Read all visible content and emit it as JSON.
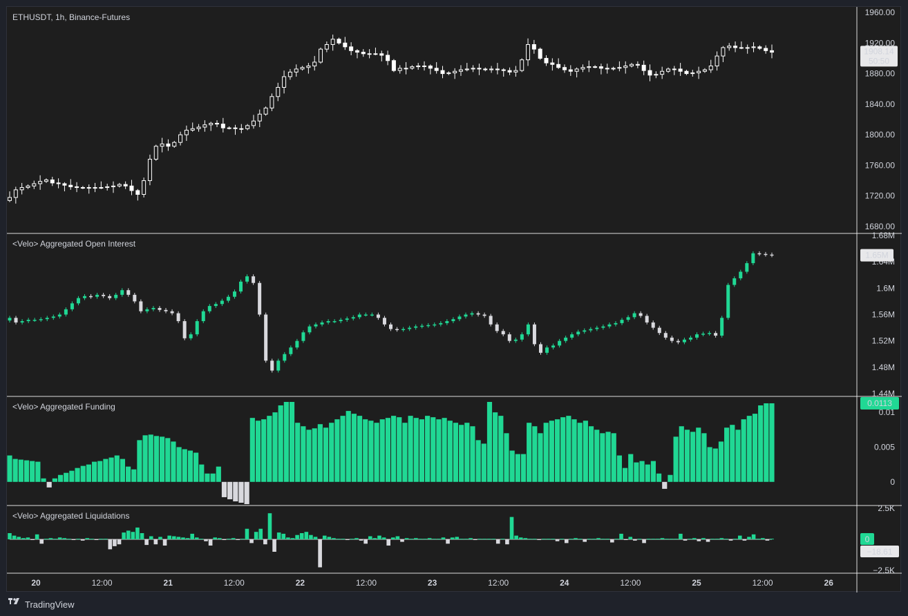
{
  "symbol": "ETHUSDT, 1h, Binance-Futures",
  "footer": {
    "brand": "TradingView",
    "logo_icon": "tradingview-logo-icon"
  },
  "colors": {
    "bull": "#20d894",
    "bear": "#d9d9de",
    "price_candle": "#ffffff",
    "background": "#1e1e1e",
    "grid_line": "#ffffff"
  },
  "time_axis": {
    "labels": [
      "20",
      "12:00",
      "21",
      "12:00",
      "22",
      "12:00",
      "23",
      "12:00",
      "24",
      "12:00",
      "25",
      "12:00",
      "26"
    ],
    "bold_labels": [
      "20",
      "21",
      "22",
      "23",
      "24",
      "25",
      "26"
    ]
  },
  "price_pane": {
    "axis_labels": [
      "1960.00",
      "1920.00",
      "1880.00",
      "1840.00",
      "1800.00",
      "1760.00",
      "1720.00",
      "1680.00"
    ],
    "ylim": [
      1680,
      1960
    ],
    "last_price": "1908.14",
    "countdown": "50:50"
  },
  "oi_pane": {
    "title": "<Velo> Aggregated Open Interest",
    "axis_labels": [
      "1.68M",
      "1.64M",
      "1.6M",
      "1.56M",
      "1.52M",
      "1.48M",
      "1.44M"
    ],
    "ylim": [
      1.44,
      1.68
    ],
    "last_value": "1.65M"
  },
  "funding_pane": {
    "title": "<Velo> Aggregated Funding",
    "axis_labels": [
      "0.01",
      "0.005",
      "0"
    ],
    "ylim": [
      -0.003,
      0.0115
    ],
    "last_value": "0.0113"
  },
  "liq_pane": {
    "title": "<Velo> Aggregated Liquidations",
    "axis_labels": [
      "2.5K",
      "−2.5K"
    ],
    "ylim": [
      -2.5,
      2.5
    ],
    "last_pos": "0",
    "last_neg": "−18.61"
  },
  "chart_data": [
    {
      "type": "candlestick",
      "title": "ETHUSDT, 1h, Binance-Futures",
      "ylim": [
        1680,
        1960
      ],
      "x_labels": [
        "20",
        "12:00",
        "21",
        "12:00",
        "22",
        "12:00",
        "23",
        "12:00",
        "24",
        "12:00",
        "25",
        "12:00",
        "26"
      ],
      "close": [
        1718,
        1728,
        1731,
        1733,
        1736,
        1739,
        1741,
        1737,
        1736,
        1734,
        1732,
        1731,
        1731,
        1731,
        1731,
        1731,
        1732,
        1733,
        1735,
        1733,
        1727,
        1722,
        1740,
        1768,
        1785,
        1788,
        1785,
        1790,
        1800,
        1806,
        1808,
        1810,
        1813,
        1815,
        1814,
        1809,
        1809,
        1808,
        1808,
        1812,
        1818,
        1827,
        1835,
        1850,
        1862,
        1876,
        1882,
        1886,
        1888,
        1890,
        1895,
        1912,
        1918,
        1925,
        1920,
        1915,
        1910,
        1908,
        1906,
        1906,
        1906,
        1904,
        1897,
        1884,
        1887,
        1887,
        1889,
        1890,
        1890,
        1887,
        1884,
        1880,
        1881,
        1883,
        1885,
        1886,
        1887,
        1886,
        1885,
        1886,
        1885,
        1884,
        1882,
        1884,
        1898,
        1918,
        1912,
        1900,
        1894,
        1892,
        1888,
        1885,
        1883,
        1886,
        1888,
        1889,
        1889,
        1887,
        1886,
        1887,
        1888,
        1890,
        1892,
        1891,
        1884,
        1878,
        1879,
        1883,
        1886,
        1886,
        1883,
        1880,
        1881,
        1883,
        1885,
        1890,
        1903,
        1914,
        1916,
        1914,
        1914,
        1914,
        1915,
        1913,
        1910,
        1908
      ]
    },
    {
      "type": "candlestick",
      "title": "<Velo> Aggregated Open Interest",
      "ylim": [
        1.44,
        1.68
      ],
      "close": [
        1.555,
        1.548,
        1.55,
        1.552,
        1.552,
        1.553,
        1.555,
        1.557,
        1.56,
        1.568,
        1.577,
        1.585,
        1.588,
        1.587,
        1.59,
        1.588,
        1.585,
        1.59,
        1.597,
        1.59,
        1.58,
        1.565,
        1.568,
        1.57,
        1.567,
        1.565,
        1.562,
        1.55,
        1.524,
        1.53,
        1.55,
        1.565,
        1.573,
        1.576,
        1.581,
        1.587,
        1.595,
        1.61,
        1.618,
        1.608,
        1.56,
        1.49,
        1.475,
        1.49,
        1.5,
        1.51,
        1.52,
        1.533,
        1.542,
        1.545,
        1.548,
        1.55,
        1.55,
        1.552,
        1.554,
        1.556,
        1.56,
        1.56,
        1.56,
        1.555,
        1.545,
        1.538,
        1.537,
        1.538,
        1.54,
        1.542,
        1.543,
        1.544,
        1.545,
        1.547,
        1.55,
        1.553,
        1.557,
        1.56,
        1.562,
        1.56,
        1.558,
        1.545,
        1.535,
        1.53,
        1.52,
        1.522,
        1.53,
        1.545,
        1.515,
        1.502,
        1.51,
        1.513,
        1.52,
        1.525,
        1.53,
        1.534,
        1.536,
        1.538,
        1.54,
        1.542,
        1.545,
        1.547,
        1.552,
        1.556,
        1.562,
        1.558,
        1.548,
        1.54,
        1.532,
        1.525,
        1.52,
        1.518,
        1.522,
        1.525,
        1.53,
        1.531,
        1.532,
        1.528,
        1.555,
        1.605,
        1.615,
        1.625,
        1.638,
        1.653,
        1.652,
        1.651,
        1.65
      ]
    },
    {
      "type": "bar",
      "title": "<Velo> Aggregated Funding",
      "ylim": [
        -0.003,
        0.0115
      ],
      "values": [
        0.0038,
        0.0033,
        0.0032,
        0.0031,
        0.003,
        0.0029,
        0.0005,
        -0.0008,
        0.0005,
        0.001,
        0.0013,
        0.0016,
        0.002,
        0.0023,
        0.0025,
        0.0029,
        0.003,
        0.0033,
        0.0035,
        0.0038,
        0.0033,
        0.0022,
        0.0018,
        0.006,
        0.0067,
        0.0068,
        0.0066,
        0.0065,
        0.0063,
        0.0058,
        0.005,
        0.0047,
        0.0045,
        0.0042,
        0.0025,
        0.0012,
        0.0012,
        0.0022,
        -0.0022,
        -0.0025,
        -0.0028,
        -0.003,
        -0.0032,
        0.0092,
        0.0088,
        0.009,
        0.0095,
        0.01,
        0.011,
        0.0115,
        0.0115,
        0.0085,
        0.008,
        0.0075,
        0.0077,
        0.0083,
        0.0078,
        0.0085,
        0.009,
        0.0095,
        0.0102,
        0.0098,
        0.0095,
        0.009,
        0.0088,
        0.0085,
        0.009,
        0.0092,
        0.0095,
        0.0093,
        0.0085,
        0.0095,
        0.0092,
        0.009,
        0.0095,
        0.0093,
        0.009,
        0.0092,
        0.0088,
        0.0085,
        0.0082,
        0.0085,
        0.008,
        0.006,
        0.0055,
        0.0115,
        0.01,
        0.0095,
        0.007,
        0.0045,
        0.004,
        0.004,
        0.0085,
        0.008,
        0.007,
        0.0085,
        0.0088,
        0.009,
        0.0093,
        0.0095,
        0.009,
        0.0085,
        0.0088,
        0.008,
        0.0075,
        0.007,
        0.0072,
        0.007,
        0.0038,
        0.002,
        0.004,
        0.0028,
        0.003,
        0.0025,
        0.003,
        0.0012,
        -0.001,
        0.001,
        0.0065,
        0.008,
        0.0075,
        0.0072,
        0.0078,
        0.007,
        0.005,
        0.0048,
        0.0058,
        0.0078,
        0.0082,
        0.0075,
        0.009,
        0.0095,
        0.0098,
        0.011,
        0.0113,
        0.0113
      ]
    },
    {
      "type": "bar",
      "title": "<Velo> Aggregated Liquidations",
      "ylim": [
        -2.5,
        2.5
      ],
      "values": [
        0.5,
        0.3,
        0.2,
        0.1,
        0.15,
        -0.05,
        0.4,
        -0.35,
        0.05,
        0.1,
        0.05,
        0.15,
        0.1,
        0.05,
        -0.05,
        0.05,
        -0.1,
        0.1,
        0.05,
        -0.05,
        0.05,
        0.05,
        -0.8,
        -0.55,
        -0.4,
        0.55,
        0.7,
        0.6,
        0.95,
        0.5,
        -0.45,
        0.25,
        -0.4,
        0.2,
        -0.5,
        0.3,
        0.25,
        0.2,
        0.15,
        0.1,
        0.45,
        0.15,
        0.05,
        -0.15,
        -0.5,
        0.15,
        0.1,
        -0.05,
        0.05,
        0.1,
        -0.05,
        0.05,
        0.85,
        -0.3,
        0.6,
        0.85,
        -0.4,
        2.1,
        -1.0,
        0.55,
        0.45,
        0.15,
        0.1,
        0.35,
        0.5,
        0.6,
        0.35,
        0.2,
        -2.25,
        0.3,
        0.2,
        0.1,
        0.05,
        0.05,
        -0.05,
        0.05,
        0.1,
        -0.1,
        -0.35,
        0.25,
        0.1,
        0.3,
        0.15,
        -0.5,
        0.15,
        0.25,
        -0.2,
        0.1,
        0.05,
        0.1,
        0.05,
        0.05,
        0.1,
        0.05,
        0.05,
        0.15,
        -0.35,
        0.15,
        0.2,
        0.05,
        0.05,
        0.1,
        -0.05,
        0.05,
        0.05,
        0.05,
        0.05,
        -0.35,
        0.05,
        -0.4,
        1.8,
        0.3,
        0.15,
        0.1,
        0.05,
        0.05,
        -0.05,
        0.05,
        0.05,
        0.05,
        -0.15,
        0.05,
        -0.3,
        0.05,
        0.1,
        0.05,
        -0.2,
        0.05,
        0.05,
        0.1,
        0.05,
        0.05,
        -0.25,
        0.05,
        0.45,
        -0.05,
        0.2,
        -0.1,
        0.05,
        -0.3,
        0.05,
        0.05,
        0.05,
        0.1,
        0.05,
        0.05,
        0.05,
        0.45,
        -0.1,
        0.05,
        0.1,
        -0.15,
        0.1,
        -0.2,
        0.05,
        0.05,
        0.1,
        0.05,
        -0.1,
        0.05,
        0.3,
        -0.1,
        0.2,
        0.4,
        0.05,
        0.1,
        -0.1,
        0.05
      ]
    }
  ]
}
